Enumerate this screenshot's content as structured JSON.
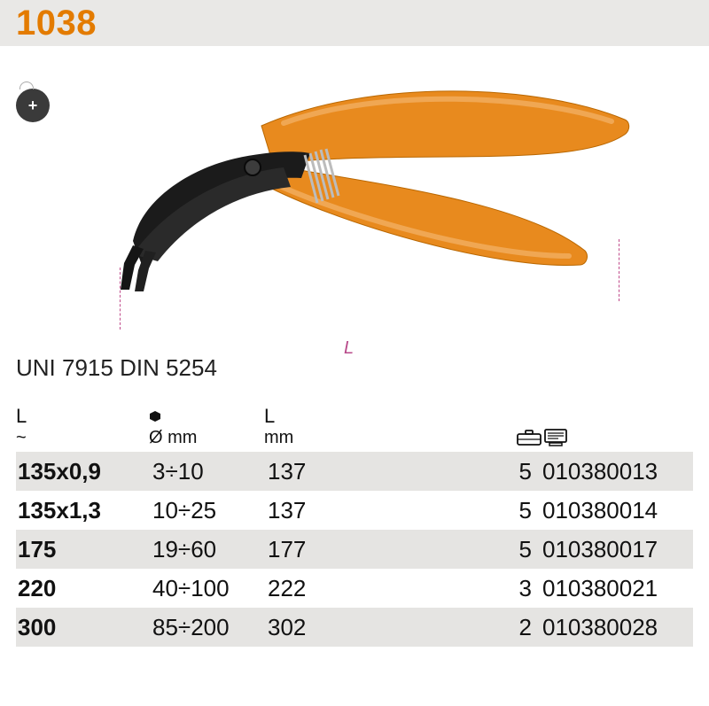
{
  "product_code": "1038",
  "badge_symbol": "+",
  "dimension_letter": "L",
  "standards_text": "UNI 7915 DIN 5254",
  "colors": {
    "accent_orange": "#e37b00",
    "handle_orange": "#e88a1e",
    "dimension_pink": "#b84a8a",
    "row_alt_bg": "#e5e4e2",
    "tool_dark": "#1e1e1e",
    "spring_grey": "#bcbcbc"
  },
  "table": {
    "headers": {
      "col1_top": "L",
      "col1_sub": "~",
      "col2_top_icon": "hex",
      "col2_sub": "Ø  mm",
      "col3_top": "L",
      "col3_sub": "mm",
      "col5_icon": "case",
      "col6_icon": "order"
    },
    "columns_layout": "150px 130px 120px 1fr 70px 170px",
    "rows": [
      {
        "size": "135x0,9",
        "diam": "3÷10",
        "len": "137",
        "pack": "5",
        "code": "010380013"
      },
      {
        "size": "135x1,3",
        "diam": "10÷25",
        "len": "137",
        "pack": "5",
        "code": "010380014"
      },
      {
        "size": "175",
        "diam": "19÷60",
        "len": "177",
        "pack": "5",
        "code": "010380017"
      },
      {
        "size": "220",
        "diam": "40÷100",
        "len": "222",
        "pack": "3",
        "code": "010380021"
      },
      {
        "size": "300",
        "diam": "85÷200",
        "len": "302",
        "pack": "2",
        "code": "010380028"
      }
    ]
  }
}
